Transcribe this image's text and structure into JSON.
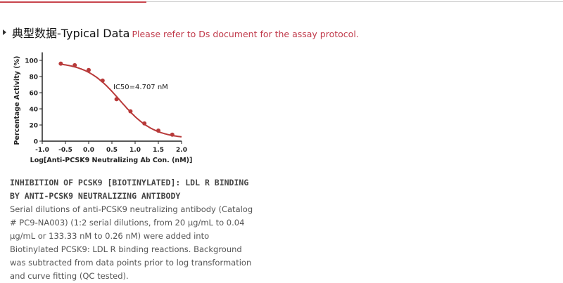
{
  "heading": {
    "title": "典型数据-Typical Data",
    "note": "Please refer to Ds document for the assay protocol."
  },
  "chart_data": {
    "type": "scatter",
    "xlabel": "Log[Anti-PCSK9 Neutralizing Ab Con. (nM)]",
    "ylabel": "Percentage Activity (%)",
    "xlim": [
      -1.0,
      2.0
    ],
    "ylim": [
      0,
      110
    ],
    "xticks": [
      "-1.0",
      "-0.5",
      "0.0",
      "0.5",
      "1.0",
      "1.5",
      "2.0"
    ],
    "yticks": [
      "0",
      "20",
      "40",
      "60",
      "80",
      "100"
    ],
    "annotation": "IC50=4.707 nM",
    "points": {
      "x": [
        -0.6,
        -0.3,
        0.0,
        0.3,
        0.6,
        0.9,
        1.2,
        1.5,
        1.8
      ],
      "y": [
        96,
        94,
        88,
        75,
        52,
        37,
        22,
        13,
        8
      ]
    },
    "fit": {
      "model": "4PL",
      "top": 98,
      "bottom": 3,
      "log_ic50": 0.673,
      "hill": 1.2
    },
    "color": "#b83a3a",
    "grid": false
  },
  "description": {
    "title": "INHIBITION OF PCSK9 [BIOTINYLATED]: LDL R BINDING BY ANTI-PCSK9 NEUTRALIZING ANTIBODY",
    "body": "Serial dilutions of anti-PCSK9 neutralizing antibody (Catalog # PC9-NA003) (1:2 serial dilutions, from 20 μg/mL to 0.04 μg/mL or 133.33 nM to 0.26 nM) were added into Biotinylated PCSK9: LDL R binding reactions. Background was subtracted from data points prior to log transformation and curve fitting (QC tested)."
  }
}
